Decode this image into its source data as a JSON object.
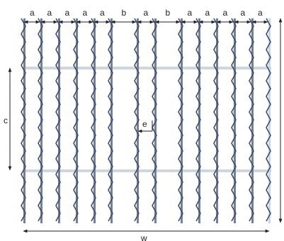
{
  "labels": {
    "a": "a",
    "b": "b",
    "c": "c",
    "e": "e",
    "w": "w"
  },
  "colors": {
    "fiber_blue": "#2e4f8f",
    "strip_gray": "#7f7f7f",
    "light_gray": "#cfd6dc",
    "dimension_line": "#222222"
  }
}
